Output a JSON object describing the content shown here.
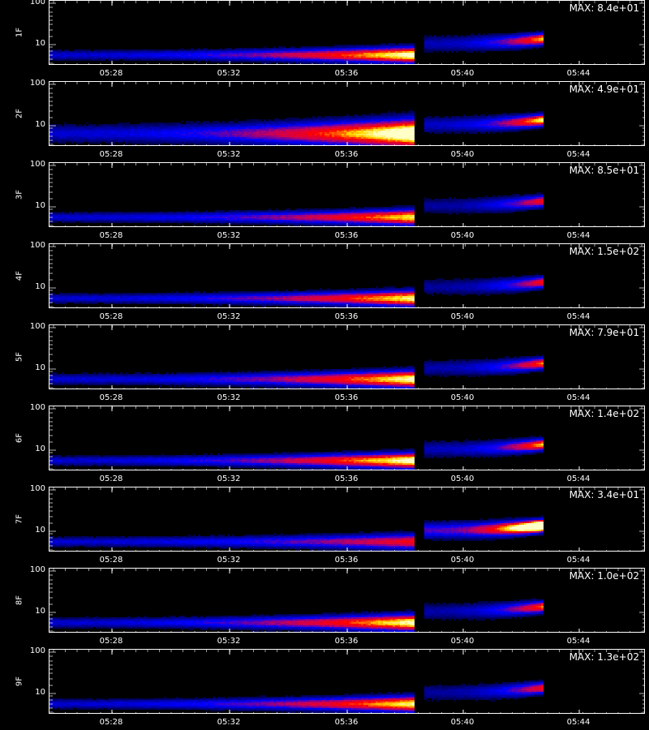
{
  "chart_data": {
    "type": "heatmap",
    "xlabel": "",
    "x_tick_labels": [
      "05:28",
      "05:32",
      "05:36",
      "05:40",
      "05:44"
    ],
    "y_scale": "log",
    "y_tick_labels": [
      "100",
      "10"
    ],
    "ylim": [
      3,
      120
    ],
    "gap": [
      "05:38:20",
      "05:38:30"
    ],
    "panels": [
      {
        "label": "1F",
        "max": "MAX: 8.4e+01"
      },
      {
        "label": "2F",
        "max": "MAX: 4.9e+01"
      },
      {
        "label": "3F",
        "max": "MAX: 8.5e+01"
      },
      {
        "label": "4F",
        "max": "MAX: 1.5e+02"
      },
      {
        "label": "5F",
        "max": "MAX: 7.9e+01"
      },
      {
        "label": "6F",
        "max": "MAX: 1.4e+02"
      },
      {
        "label": "7F",
        "max": "MAX: 3.4e+01"
      },
      {
        "label": "8F",
        "max": "MAX: 1.0e+02"
      },
      {
        "label": "9F",
        "max": "MAX: 1.3e+02"
      }
    ]
  },
  "colors": {
    "background": "#000000",
    "frame": "#ffffff",
    "colormap": [
      "#000000",
      "#00007f",
      "#0000ff",
      "#ff0000",
      "#ffff00",
      "#ffffff"
    ]
  }
}
